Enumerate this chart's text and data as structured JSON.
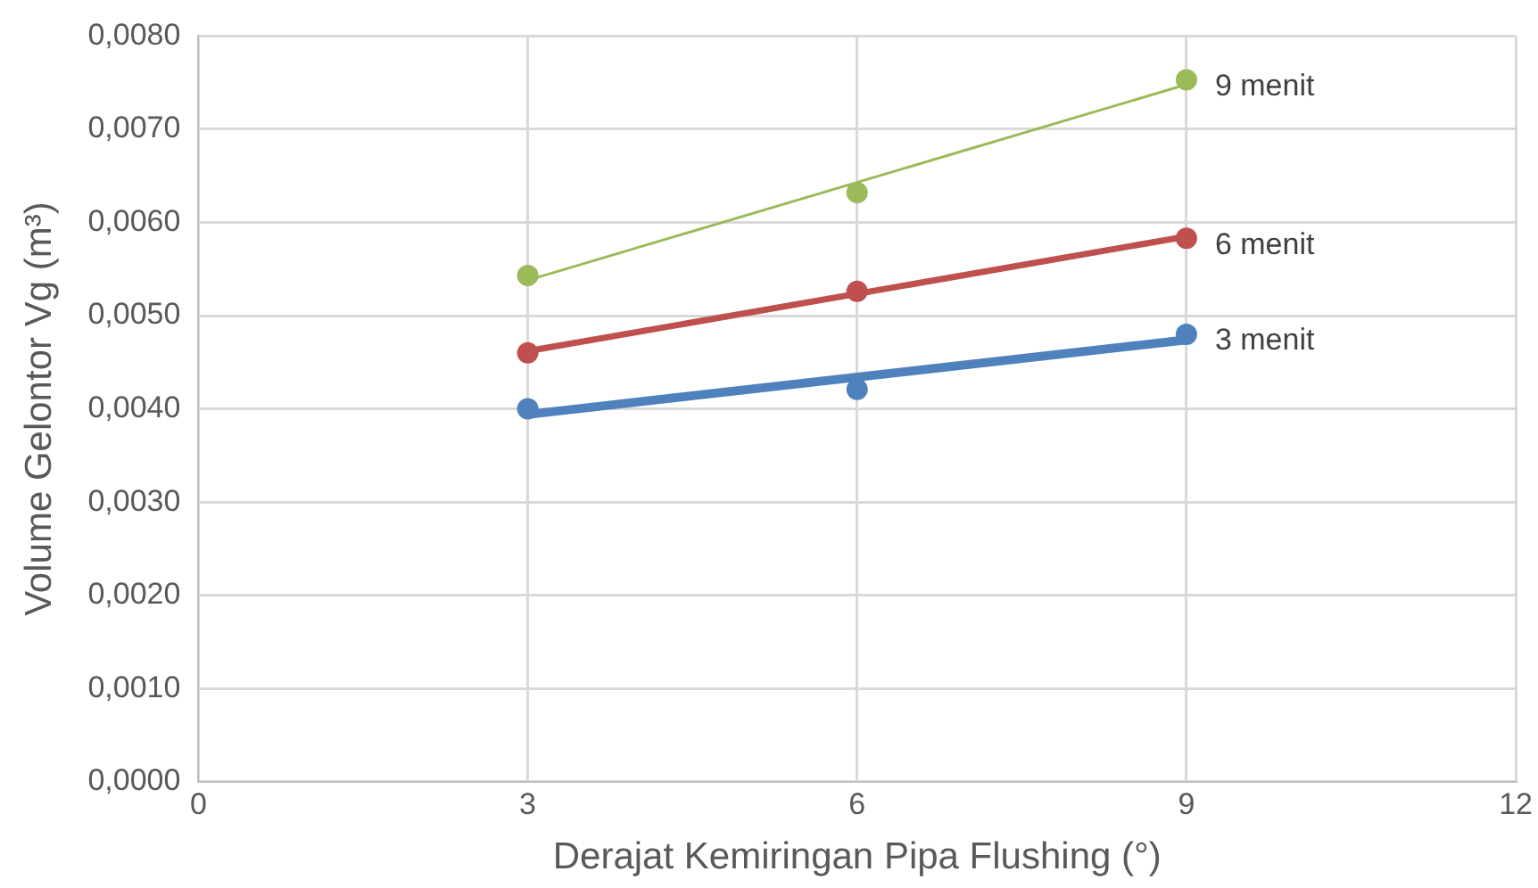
{
  "chart_data": {
    "type": "scatter",
    "xlabel": "Derajat Kemiringan Pipa Flushing (°)",
    "ylabel": "Volume Gelontor Vg (m³)",
    "xlim": [
      0,
      12
    ],
    "xticks": [
      0,
      3,
      6,
      9,
      12
    ],
    "ylim": [
      0,
      0.008
    ],
    "yticks": [
      {
        "value": 0,
        "label": "0,0000"
      },
      {
        "value": 0.001,
        "label": "0,0010"
      },
      {
        "value": 0.002,
        "label": "0,0020"
      },
      {
        "value": 0.003,
        "label": "0,0030"
      },
      {
        "value": 0.004,
        "label": "0,0040"
      },
      {
        "value": 0.005,
        "label": "0,0050"
      },
      {
        "value": 0.006,
        "label": "0,0060"
      },
      {
        "value": 0.007,
        "label": "0,0070"
      },
      {
        "value": 0.008,
        "label": "0,0080"
      }
    ],
    "grid": true,
    "legend": false,
    "marker": "circle",
    "series": [
      {
        "name": "3 menit",
        "color": "#4f81bd",
        "x": [
          3,
          6,
          9
        ],
        "values": [
          0.004,
          0.00421,
          0.0048
        ]
      },
      {
        "name": "6 menit",
        "color": "#c0504d",
        "x": [
          3,
          6,
          9
        ],
        "values": [
          0.0046,
          0.00526,
          0.00583
        ]
      },
      {
        "name": "9 menit",
        "color": "#9bbb59",
        "x": [
          3,
          6,
          9
        ],
        "values": [
          0.00543,
          0.00632,
          0.00753
        ]
      },
      {
        "type": "line",
        "color": "#4f81bd",
        "x": [
          3,
          9
        ],
        "values": [
          0.00394,
          0.00474
        ],
        "marker": "none"
      },
      {
        "type": "line",
        "color": "#c0504d",
        "x": [
          3,
          9
        ],
        "values": [
          0.00462,
          0.00585
        ],
        "marker": "none"
      },
      {
        "type": "line",
        "color": "#9bbb59",
        "x": [
          3,
          9
        ],
        "values": [
          0.00538,
          0.00748
        ],
        "marker": "none"
      }
    ]
  }
}
